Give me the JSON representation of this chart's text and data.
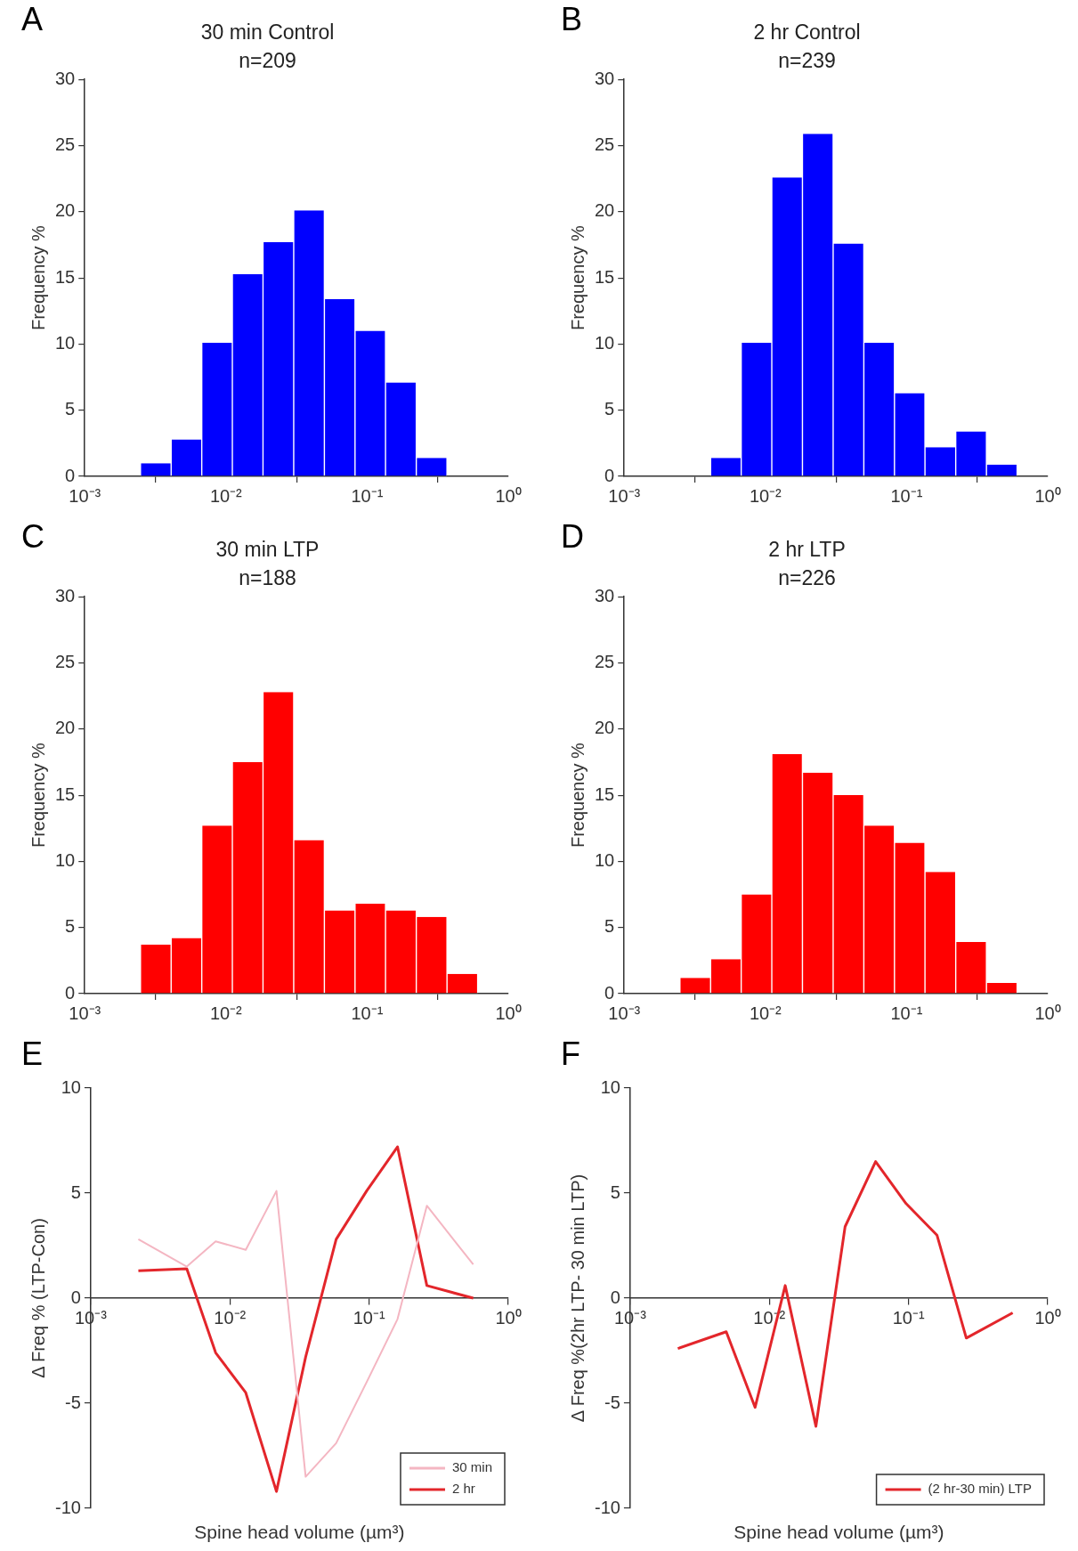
{
  "chart_data": [
    {
      "type": "histogram",
      "title": "30 min Control",
      "subtitle": "n=209",
      "ylabel": "Frequency %",
      "annotations": [
        "A"
      ],
      "color": "#0000ff",
      "bins": [
        0.00248,
        0.00409,
        0.00674,
        0.0111,
        0.0183,
        0.0302,
        0.0498,
        0.0821,
        0.135,
        0.223,
        0.368
      ],
      "values": [
        1.0,
        2.8,
        10.1,
        15.3,
        17.7,
        20.1,
        13.4,
        11.0,
        7.1,
        1.4
      ],
      "log": "x",
      "xlim": [
        0.001,
        1
      ],
      "xticks": [
        {
          "value": 0.001,
          "label": "10⁻³"
        },
        {
          "value": 0.01,
          "label": "10⁻²"
        },
        {
          "value": 0.1,
          "label": "10⁻¹"
        },
        {
          "value": 1,
          "label": "10⁰"
        }
      ],
      "ylim": [
        0,
        30
      ],
      "yticks": [
        0,
        5,
        10,
        15,
        20,
        25,
        30
      ],
      "grid": false,
      "legend": false
    },
    {
      "type": "histogram",
      "title": "2 hr Control",
      "subtitle": "n=239",
      "ylabel": "Frequency %",
      "annotations": [
        "B"
      ],
      "color": "#0000ff",
      "bins": [
        0.00409,
        0.00674,
        0.0111,
        0.0183,
        0.0302,
        0.0498,
        0.0821,
        0.135,
        0.223,
        0.368,
        0.607
      ],
      "values": [
        1.4,
        10.1,
        22.6,
        25.9,
        17.6,
        10.1,
        6.3,
        2.2,
        3.4,
        0.9
      ],
      "log": "x",
      "xlim": [
        0.001,
        1
      ],
      "xticks": [
        {
          "value": 0.001,
          "label": "10⁻³"
        },
        {
          "value": 0.01,
          "label": "10⁻²"
        },
        {
          "value": 0.1,
          "label": "10⁻¹"
        },
        {
          "value": 1,
          "label": "10⁰"
        }
      ],
      "ylim": [
        0,
        30
      ],
      "yticks": [
        0,
        5,
        10,
        15,
        20,
        25,
        30
      ],
      "grid": false,
      "legend": false
    },
    {
      "type": "histogram",
      "title": "30 min LTP",
      "subtitle": "n=188",
      "ylabel": "Frequency %",
      "annotations": [
        "C"
      ],
      "color": "#ff0000",
      "bins": [
        0.00248,
        0.00409,
        0.00674,
        0.0111,
        0.0183,
        0.0302,
        0.0498,
        0.0821,
        0.135,
        0.223,
        0.368,
        0.607
      ],
      "values": [
        3.7,
        4.2,
        12.7,
        17.5,
        22.8,
        11.6,
        6.3,
        6.8,
        6.3,
        5.8,
        1.5
      ],
      "log": "x",
      "xlim": [
        0.001,
        1
      ],
      "xticks": [
        {
          "value": 0.001,
          "label": "10⁻³"
        },
        {
          "value": 0.01,
          "label": "10⁻²"
        },
        {
          "value": 0.1,
          "label": "10⁻¹"
        },
        {
          "value": 1,
          "label": "10⁰"
        }
      ],
      "ylim": [
        0,
        30
      ],
      "yticks": [
        0,
        5,
        10,
        15,
        20,
        25,
        30
      ],
      "grid": false,
      "legend": false
    },
    {
      "type": "histogram",
      "title": "2 hr LTP",
      "subtitle": "n=226",
      "ylabel": "Frequency %",
      "annotations": [
        "D"
      ],
      "color": "#ff0000",
      "bins": [
        0.00248,
        0.00409,
        0.00674,
        0.0111,
        0.0183,
        0.0302,
        0.0498,
        0.0821,
        0.135,
        0.223,
        0.368,
        0.607
      ],
      "values": [
        1.2,
        2.6,
        7.5,
        18.1,
        16.7,
        15.0,
        12.7,
        11.4,
        9.2,
        3.9,
        0.8
      ],
      "log": "x",
      "xlim": [
        0.001,
        1
      ],
      "xticks": [
        {
          "value": 0.001,
          "label": "10⁻³"
        },
        {
          "value": 0.01,
          "label": "10⁻²"
        },
        {
          "value": 0.1,
          "label": "10⁻¹"
        },
        {
          "value": 1,
          "label": "10⁰"
        }
      ],
      "ylim": [
        0,
        30
      ],
      "yticks": [
        0,
        5,
        10,
        15,
        20,
        25,
        30
      ],
      "grid": false,
      "legend": false
    },
    {
      "type": "line",
      "xlabel": "Spine head volume (µm³)",
      "ylabel": "Δ Freq % (LTP-Con)",
      "annotations": [
        "E"
      ],
      "x": [
        0.0022,
        0.0049,
        0.0079,
        0.013,
        0.0216,
        0.035,
        0.058,
        0.096,
        0.16,
        0.26,
        0.56
      ],
      "series": [
        {
          "name": "30 min",
          "color": "#f4b6c2",
          "values": [
            2.8,
            1.5,
            2.7,
            2.3,
            5.1,
            -8.5,
            -6.9,
            -4.0,
            -1.0,
            4.4,
            1.6
          ]
        },
        {
          "name": "2 hr",
          "color": "#e3262b",
          "values": [
            1.3,
            1.4,
            -2.6,
            -4.5,
            -9.2,
            -2.8,
            2.8,
            5.1,
            7.2,
            0.6,
            0.0
          ]
        }
      ],
      "log": "x",
      "xlim": [
        0.001,
        1
      ],
      "xticks": [
        {
          "value": 0.001,
          "label": "10⁻³"
        },
        {
          "value": 0.01,
          "label": "10⁻²"
        },
        {
          "value": 0.1,
          "label": "10⁻¹"
        },
        {
          "value": 1,
          "label": "10⁰"
        }
      ],
      "ylim": [
        -10,
        10
      ],
      "yticks": [
        -10,
        -5,
        0,
        5,
        10
      ],
      "grid": false,
      "legend": "bottom right",
      "line_style": "solid"
    },
    {
      "type": "line",
      "xlabel": "Spine head volume (µm³)",
      "ylabel": "Δ Freq %(2hr LTP- 30 min LTP)",
      "annotations": [
        "F"
      ],
      "x": [
        0.0022,
        0.0049,
        0.0079,
        0.013,
        0.0216,
        0.035,
        0.058,
        0.096,
        0.16,
        0.26,
        0.56
      ],
      "series": [
        {
          "name": "(2 hr-30 min) LTP",
          "color": "#e3262b",
          "values": [
            -2.4,
            -1.6,
            -5.2,
            0.6,
            -6.1,
            3.4,
            6.5,
            4.5,
            3.0,
            -1.9,
            -0.7
          ]
        }
      ],
      "log": "x",
      "xlim": [
        0.001,
        1
      ],
      "xticks": [
        {
          "value": 0.001,
          "label": "10⁻³"
        },
        {
          "value": 0.01,
          "label": "10⁻²"
        },
        {
          "value": 0.1,
          "label": "10⁻¹"
        },
        {
          "value": 1,
          "label": "10⁰"
        }
      ],
      "ylim": [
        -10,
        10
      ],
      "yticks": [
        -10,
        -5,
        0,
        5,
        10
      ],
      "grid": false,
      "legend": "bottom right",
      "line_style": "solid"
    }
  ]
}
